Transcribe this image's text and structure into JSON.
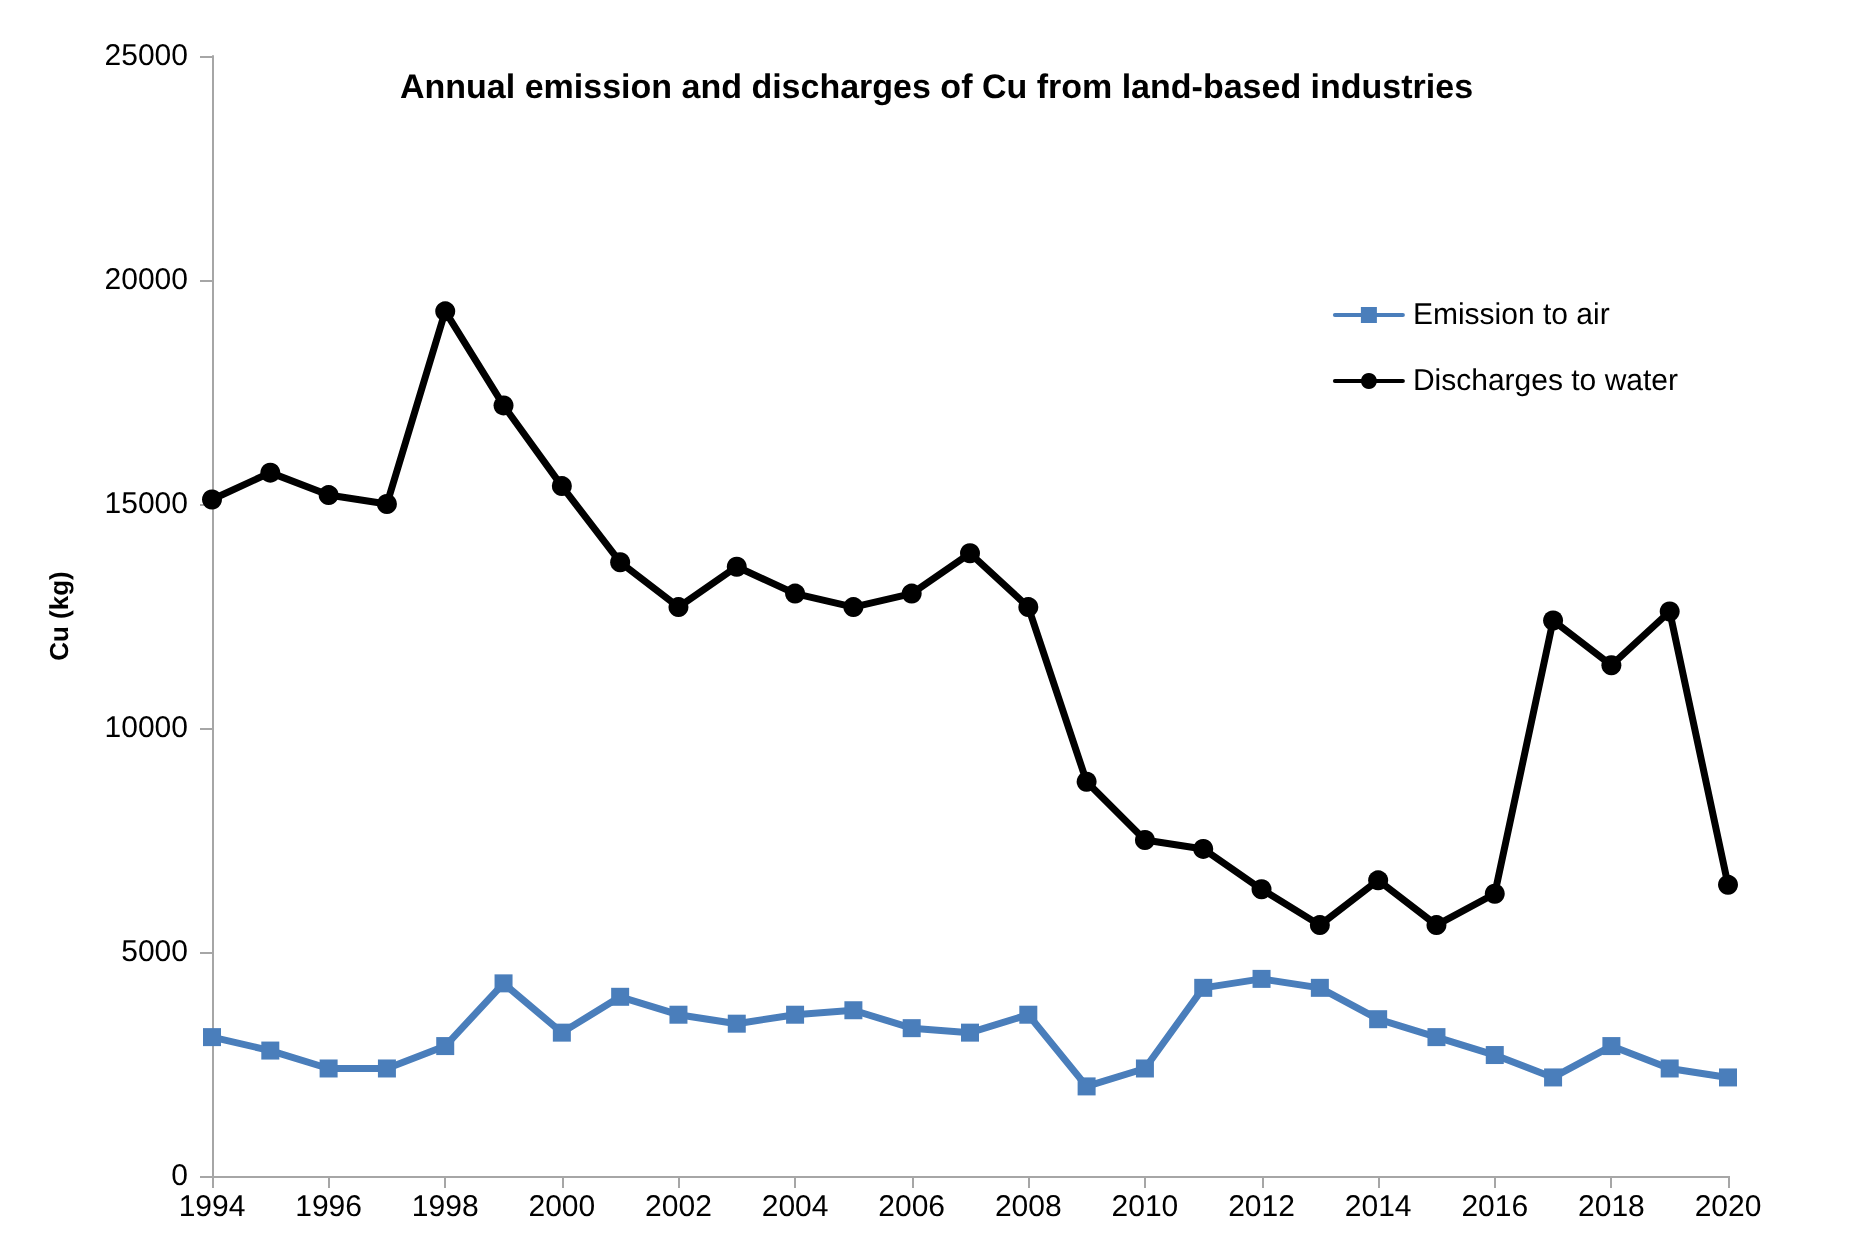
{
  "chart_data": {
    "type": "line",
    "title": "Annual emission and discharges of Cu from land-based industries",
    "ylabel": "Cu (kg)",
    "x": [
      1994,
      1995,
      1996,
      1997,
      1998,
      1999,
      2000,
      2001,
      2002,
      2003,
      2004,
      2005,
      2006,
      2007,
      2008,
      2009,
      2010,
      2011,
      2012,
      2013,
      2014,
      2015,
      2016,
      2017,
      2018,
      2019,
      2020
    ],
    "series": [
      {
        "name": "Emission to air",
        "color": "#4a7ebb",
        "marker": "square",
        "values": [
          3100,
          2800,
          2400,
          2400,
          2900,
          4300,
          3200,
          4000,
          3600,
          3400,
          3600,
          3700,
          3300,
          3200,
          3600,
          2000,
          2400,
          4200,
          4400,
          4200,
          3500,
          3100,
          2700,
          2200,
          2900,
          2400,
          2200
        ]
      },
      {
        "name": "Discharges to water",
        "color": "#000000",
        "marker": "circle",
        "values": [
          15100,
          15700,
          15200,
          15000,
          19300,
          17200,
          15400,
          13700,
          12700,
          13600,
          13000,
          12700,
          13000,
          13900,
          12700,
          8800,
          7500,
          7300,
          6400,
          5600,
          6600,
          5600,
          6300,
          12400,
          11400,
          12600,
          6500
        ]
      }
    ],
    "xlim": [
      1994,
      2020
    ],
    "xticks": [
      1994,
      1996,
      1998,
      2000,
      2002,
      2004,
      2006,
      2008,
      2010,
      2012,
      2014,
      2016,
      2018,
      2020
    ],
    "ylim": [
      0,
      25000
    ],
    "yticks": [
      0,
      5000,
      10000,
      15000,
      20000,
      25000
    ],
    "grid": false,
    "legend": "top right",
    "line_style": "solid"
  }
}
